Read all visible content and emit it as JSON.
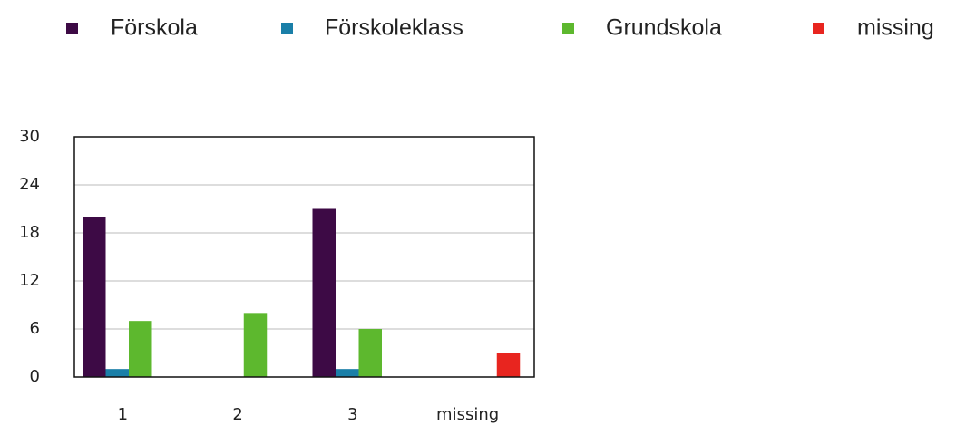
{
  "chart_data": {
    "type": "bar",
    "categories": [
      "1",
      "2",
      "3",
      "missing"
    ],
    "series": [
      {
        "name": "Förskola",
        "color": "#3d0a45",
        "values": [
          20,
          null,
          21,
          null
        ]
      },
      {
        "name": "Förskoleklass",
        "color": "#1a7fa8",
        "values": [
          1,
          null,
          1,
          null
        ]
      },
      {
        "name": "Grundskola",
        "color": "#5db82e",
        "values": [
          7,
          8,
          6,
          null
        ]
      },
      {
        "name": "missing",
        "color": "#e8251f",
        "values": [
          null,
          null,
          null,
          3
        ]
      }
    ],
    "ylim": [
      0,
      30
    ],
    "yticks": [
      0,
      6,
      12,
      18,
      24,
      30
    ],
    "grid": true,
    "legend": "top"
  }
}
